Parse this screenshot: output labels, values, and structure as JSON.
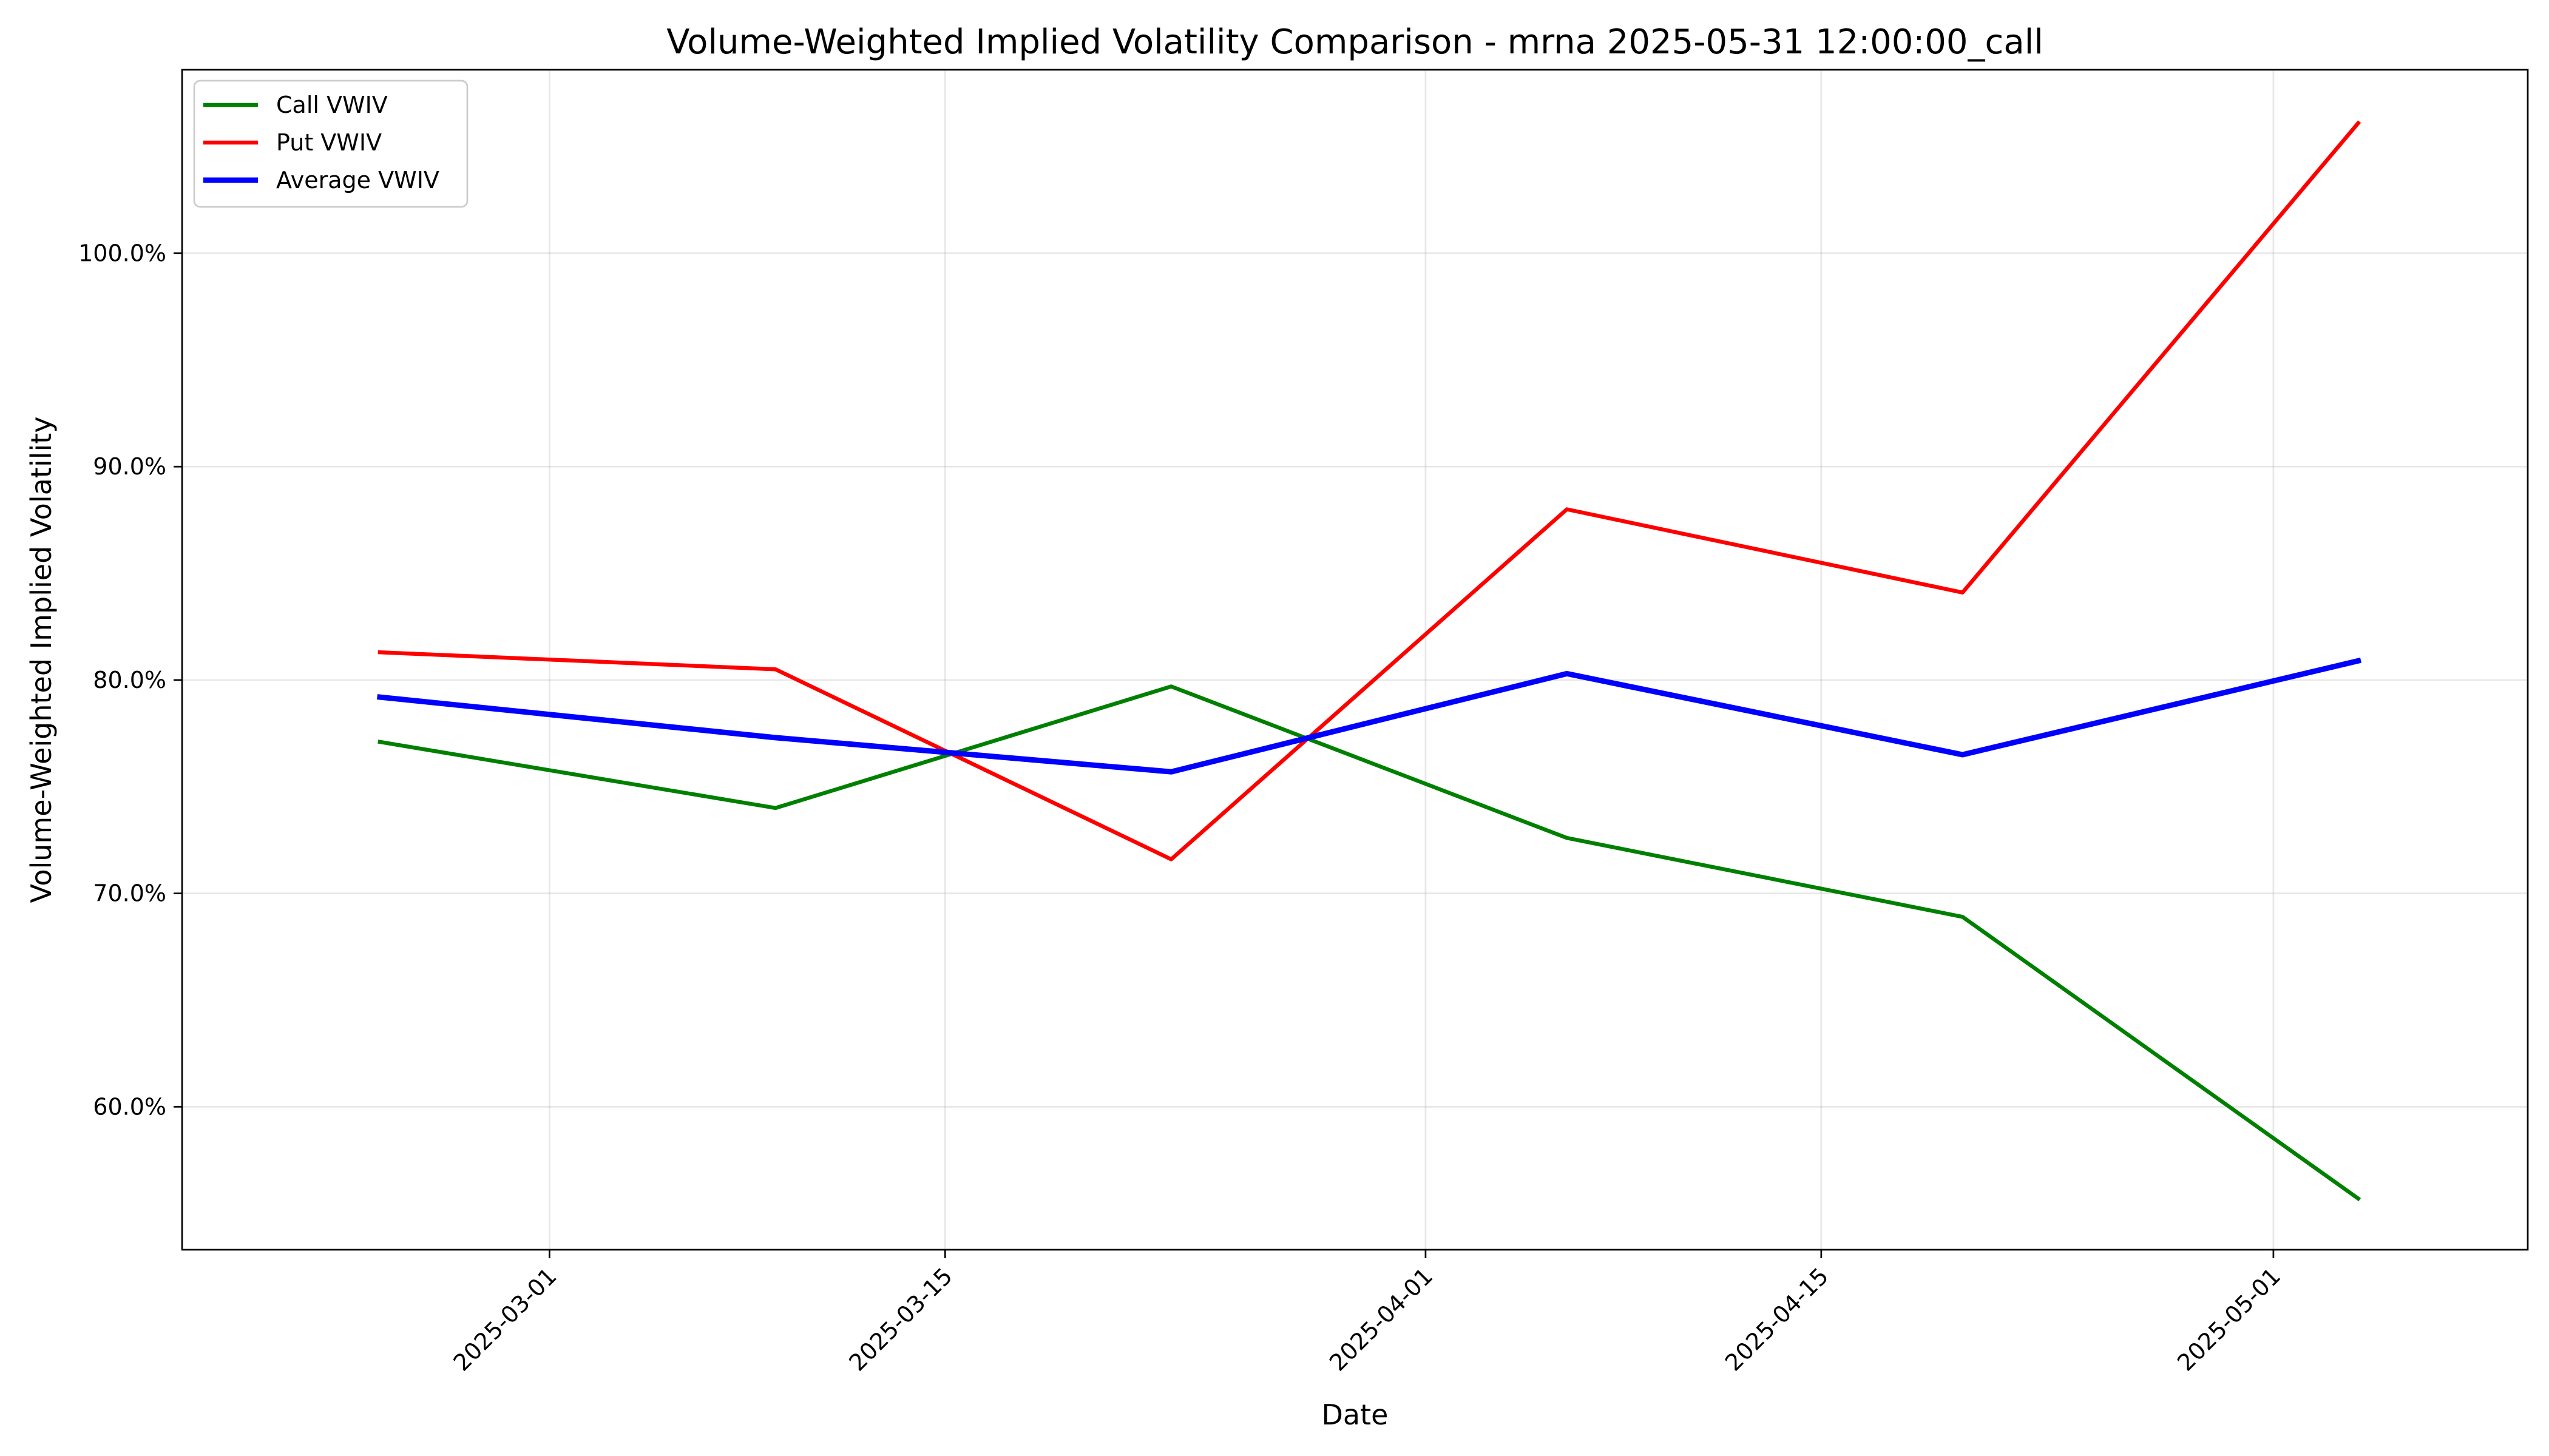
{
  "chart_data": {
    "type": "line",
    "title": "Volume-Weighted Implied Volatility Comparison - mrna 2025-05-31 12:00:00_call",
    "xlabel": "Date",
    "ylabel": "Volume-Weighted Implied Volatility",
    "x": [
      "2025-02-23",
      "2025-03-09",
      "2025-03-23",
      "2025-04-06",
      "2025-04-20",
      "2025-05-04"
    ],
    "series": [
      {
        "name": "Call VWIV",
        "color": "#008000",
        "values": [
          77.1,
          74.0,
          79.7,
          72.6,
          68.9,
          55.7
        ]
      },
      {
        "name": "Put VWIV",
        "color": "#ff0000",
        "values": [
          81.3,
          80.5,
          71.6,
          88.0,
          84.1,
          106.1
        ]
      },
      {
        "name": "Average VWIV",
        "color": "#0000ff",
        "values": [
          79.2,
          77.3,
          75.7,
          80.3,
          76.5,
          80.9
        ]
      }
    ],
    "xticks": [
      "2025-03-01",
      "2025-03-15",
      "2025-04-01",
      "2025-04-15",
      "2025-05-01"
    ],
    "yticks": [
      60,
      70,
      80,
      90,
      100
    ],
    "ytick_labels": [
      "60.0%",
      "70.0%",
      "80.0%",
      "90.0%",
      "100.0%"
    ],
    "xlim": [
      "2025-02-16",
      "2025-05-10"
    ],
    "ylim": [
      53.3,
      108.6
    ],
    "grid": true,
    "legend_position": "upper-left"
  }
}
